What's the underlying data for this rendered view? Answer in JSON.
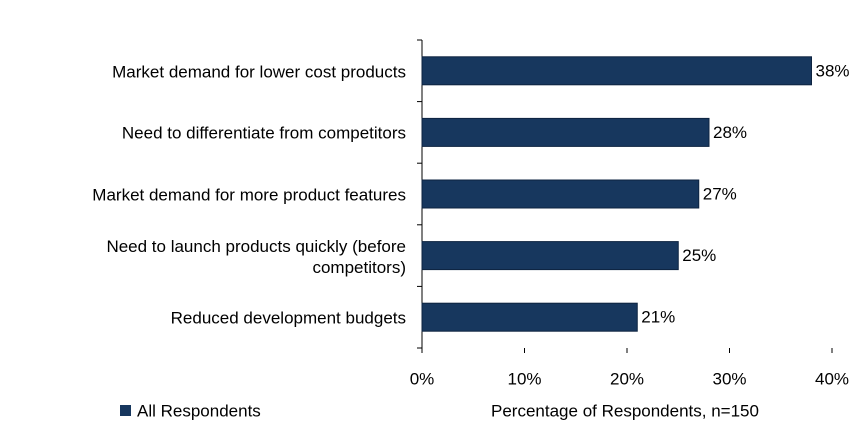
{
  "chart_data": {
    "type": "bar",
    "orientation": "horizontal",
    "categories": [
      "Market demand for lower cost products",
      "Need to differentiate from competitors",
      "Market demand for more product features",
      "Need to launch products quickly (before\ncompetitors)",
      "Reduced development budgets"
    ],
    "series": [
      {
        "name": "All Respondents",
        "color": "#17375e",
        "values": [
          38,
          28,
          27,
          25,
          21
        ],
        "value_labels": [
          "38%",
          "28%",
          "27%",
          "25%",
          "21%"
        ]
      }
    ],
    "xlim": [
      0,
      40
    ],
    "xticks": [
      {
        "value": 0,
        "label": "0%"
      },
      {
        "value": 10,
        "label": "10%"
      },
      {
        "value": 20,
        "label": "20%"
      },
      {
        "value": 30,
        "label": "30%"
      },
      {
        "value": 40,
        "label": "40%"
      }
    ],
    "xlabel": "Percentage of Respondents, n=150",
    "legend": "bottom-left"
  }
}
